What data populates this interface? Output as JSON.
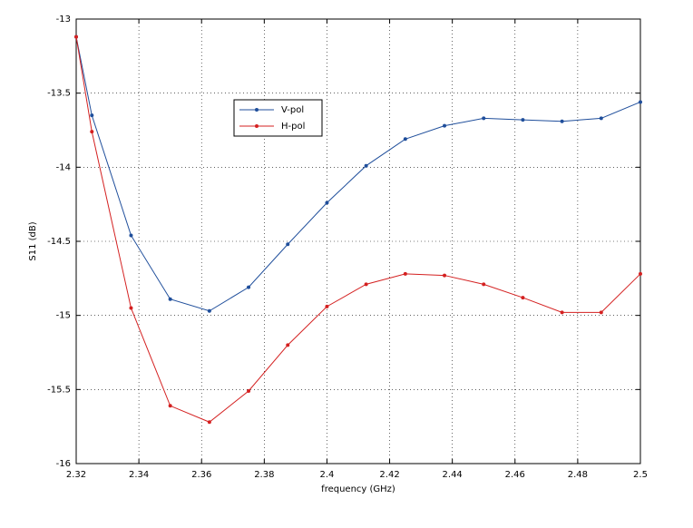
{
  "chart_data": {
    "type": "line",
    "x_label": "frequency (GHz)",
    "y_label": "S11 (dB)",
    "x": [
      2.32,
      2.325,
      2.3375,
      2.35,
      2.3625,
      2.375,
      2.3875,
      2.4,
      2.4125,
      2.425,
      2.4375,
      2.45,
      2.4625,
      2.475,
      2.4875,
      2.5
    ],
    "series": [
      {
        "name": "V-pol",
        "color": "#1f4e9b",
        "values": [
          -13.12,
          -13.65,
          -14.46,
          -14.89,
          -14.97,
          -14.81,
          -14.52,
          -14.24,
          -13.99,
          -13.81,
          -13.72,
          -13.67,
          -13.68,
          -13.69,
          -13.67,
          -13.56
        ]
      },
      {
        "name": "H-pol",
        "color": "#d42020",
        "values": [
          -13.12,
          -13.76,
          -14.95,
          -15.61,
          -15.72,
          -15.51,
          -15.2,
          -14.94,
          -14.79,
          -14.72,
          -14.73,
          -14.79,
          -14.88,
          -14.98,
          -14.98,
          -14.72
        ]
      }
    ],
    "xlim": [
      2.32,
      2.5
    ],
    "xticks": [
      2.32,
      2.34,
      2.36,
      2.38,
      2.4,
      2.42,
      2.44,
      2.46,
      2.48,
      2.5
    ],
    "ylim": [
      -16,
      -13
    ],
    "yticks": [
      -16,
      -15.5,
      -15,
      -14.5,
      -14,
      -13.5,
      -13
    ],
    "grid": true
  }
}
